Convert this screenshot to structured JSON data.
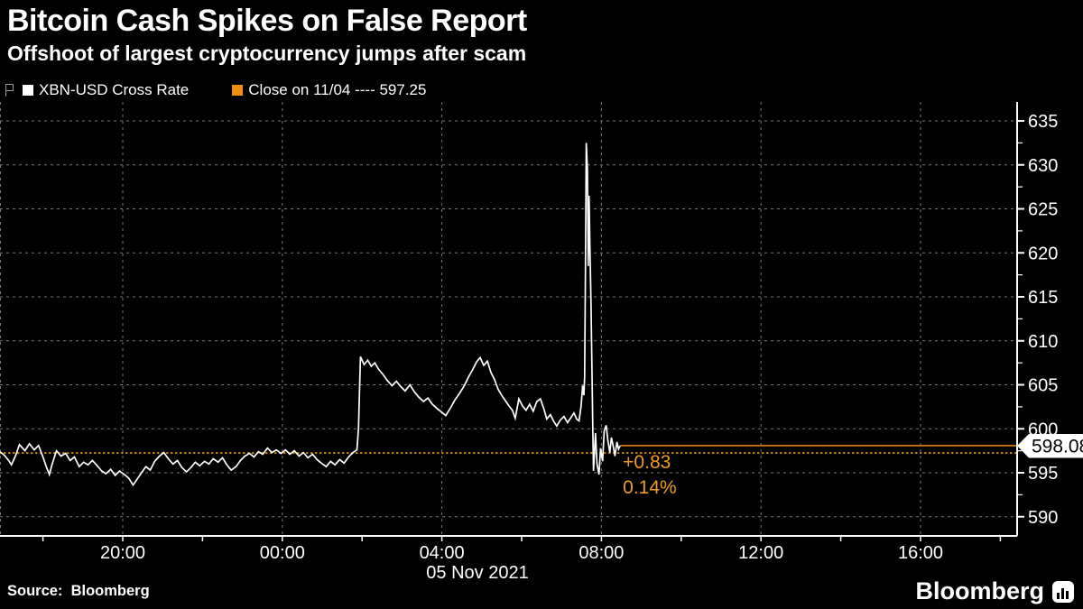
{
  "header": {
    "title": "Bitcoin Cash Spikes on False Report",
    "subtitle": "Offshoot of largest cryptocurrency jumps after scam"
  },
  "legend": {
    "series_label": "XBN-USD Cross Rate",
    "close_label": "Close on 11/04 ---- 597.25"
  },
  "footer": {
    "source": "Source:  Bloomberg",
    "brand": "Bloomberg"
  },
  "colors": {
    "background": "#000000",
    "text": "#ffffff",
    "grid": "#787878",
    "axis": "#ffffff",
    "series": "#ffffff",
    "legend_orange": "#EF8E0F",
    "close_dotted": "#C8820A",
    "last_price_line": "#E08214",
    "annotation": "#F09C1E",
    "price_tag_bg": "#ffffff",
    "price_tag_text": "#000000"
  },
  "chart_data": {
    "type": "line",
    "title": "XBN-USD Cross Rate",
    "xlabel": "",
    "ylabel": "",
    "x_axis": {
      "unit": "hours since 2021-11-04 00:00",
      "range_hours": [
        16.92,
        42.42
      ],
      "label_hours": [
        20,
        24,
        28,
        32,
        36,
        40
      ],
      "tick_labels": [
        "20:00",
        "00:00",
        "04:00",
        "08:00",
        "12:00",
        "16:00"
      ],
      "minor_tick_hours": [
        18,
        20,
        22,
        24,
        26,
        28,
        30,
        32,
        34,
        36,
        38,
        40,
        42
      ],
      "date_label": "05 Nov 2021"
    },
    "y_axis": {
      "side": "right",
      "range": [
        587.6,
        636.8
      ],
      "ticks": [
        590,
        595,
        600,
        605,
        610,
        615,
        620,
        625,
        630,
        635
      ],
      "minor_ticks": [
        592.5,
        597.5,
        602.5,
        607.5,
        612.5,
        617.5,
        622.5,
        627.5,
        632.5
      ]
    },
    "grid": "dashed horizontal and vertical",
    "legend_position": "top-left above plot",
    "close_line": {
      "value": 597.25,
      "style": "dotted-orange",
      "label": "Close on 11/04"
    },
    "last_price": {
      "value": 598.08,
      "label": "598.08",
      "change": "+0.83",
      "change_pct": "0.14%"
    },
    "series": [
      {
        "name": "XBN-USD Cross Rate",
        "color": "#ffffff",
        "points": [
          [
            16.92,
            597.4
          ],
          [
            17.03,
            597.0
          ],
          [
            17.14,
            596.4
          ],
          [
            17.21,
            595.9
          ],
          [
            17.32,
            597.0
          ],
          [
            17.41,
            598.2
          ],
          [
            17.55,
            597.5
          ],
          [
            17.66,
            598.3
          ],
          [
            17.78,
            597.6
          ],
          [
            17.89,
            598.1
          ],
          [
            18.0,
            596.8
          ],
          [
            18.09,
            595.6
          ],
          [
            18.16,
            594.8
          ],
          [
            18.23,
            596.0
          ],
          [
            18.34,
            597.5
          ],
          [
            18.45,
            596.9
          ],
          [
            18.57,
            597.2
          ],
          [
            18.68,
            596.4
          ],
          [
            18.79,
            596.8
          ],
          [
            18.91,
            595.7
          ],
          [
            19.02,
            596.2
          ],
          [
            19.13,
            595.9
          ],
          [
            19.24,
            596.4
          ],
          [
            19.36,
            595.8
          ],
          [
            19.47,
            595.2
          ],
          [
            19.58,
            594.9
          ],
          [
            19.7,
            595.4
          ],
          [
            19.81,
            594.7
          ],
          [
            19.92,
            595.2
          ],
          [
            20.04,
            594.8
          ],
          [
            20.15,
            594.4
          ],
          [
            20.26,
            593.6
          ],
          [
            20.35,
            594.2
          ],
          [
            20.47,
            595.0
          ],
          [
            20.58,
            595.7
          ],
          [
            20.69,
            595.3
          ],
          [
            20.8,
            596.3
          ],
          [
            20.92,
            596.9
          ],
          [
            21.03,
            597.3
          ],
          [
            21.14,
            596.6
          ],
          [
            21.26,
            596.0
          ],
          [
            21.37,
            596.4
          ],
          [
            21.48,
            595.6
          ],
          [
            21.6,
            595.1
          ],
          [
            21.71,
            595.6
          ],
          [
            21.82,
            596.2
          ],
          [
            21.93,
            595.8
          ],
          [
            22.05,
            596.3
          ],
          [
            22.16,
            596.0
          ],
          [
            22.27,
            596.6
          ],
          [
            22.39,
            596.2
          ],
          [
            22.5,
            596.7
          ],
          [
            22.61,
            595.9
          ],
          [
            22.72,
            595.3
          ],
          [
            22.84,
            595.7
          ],
          [
            22.95,
            596.4
          ],
          [
            23.06,
            596.9
          ],
          [
            23.18,
            597.2
          ],
          [
            23.29,
            596.8
          ],
          [
            23.4,
            597.4
          ],
          [
            23.51,
            597.1
          ],
          [
            23.63,
            597.8
          ],
          [
            23.74,
            597.3
          ],
          [
            23.85,
            597.6
          ],
          [
            23.97,
            597.2
          ],
          [
            24.08,
            597.6
          ],
          [
            24.19,
            597.1
          ],
          [
            24.3,
            597.5
          ],
          [
            24.42,
            596.9
          ],
          [
            24.53,
            597.3
          ],
          [
            24.64,
            596.7
          ],
          [
            24.76,
            597.1
          ],
          [
            24.87,
            596.5
          ],
          [
            24.98,
            596.1
          ],
          [
            25.1,
            595.7
          ],
          [
            25.21,
            596.3
          ],
          [
            25.32,
            595.9
          ],
          [
            25.44,
            596.5
          ],
          [
            25.55,
            596.1
          ],
          [
            25.66,
            596.8
          ],
          [
            25.77,
            597.3
          ],
          [
            25.87,
            597.6
          ],
          [
            25.91,
            600.0
          ],
          [
            25.96,
            608.2
          ],
          [
            26.05,
            607.3
          ],
          [
            26.14,
            607.8
          ],
          [
            26.23,
            607.1
          ],
          [
            26.32,
            607.5
          ],
          [
            26.41,
            606.8
          ],
          [
            26.52,
            606.2
          ],
          [
            26.63,
            605.5
          ],
          [
            26.75,
            604.9
          ],
          [
            26.86,
            605.4
          ],
          [
            26.97,
            604.8
          ],
          [
            27.08,
            604.3
          ],
          [
            27.2,
            605.0
          ],
          [
            27.31,
            604.2
          ],
          [
            27.42,
            603.6
          ],
          [
            27.54,
            603.1
          ],
          [
            27.65,
            603.5
          ],
          [
            27.76,
            602.8
          ],
          [
            27.88,
            602.3
          ],
          [
            27.99,
            601.9
          ],
          [
            28.1,
            601.5
          ],
          [
            28.22,
            602.4
          ],
          [
            28.33,
            603.3
          ],
          [
            28.44,
            604.0
          ],
          [
            28.55,
            604.8
          ],
          [
            28.67,
            605.9
          ],
          [
            28.78,
            606.8
          ],
          [
            28.87,
            607.6
          ],
          [
            28.96,
            608.1
          ],
          [
            29.05,
            607.2
          ],
          [
            29.14,
            607.7
          ],
          [
            29.23,
            606.4
          ],
          [
            29.32,
            605.6
          ],
          [
            29.41,
            604.5
          ],
          [
            29.5,
            603.8
          ],
          [
            29.59,
            603.2
          ],
          [
            29.68,
            602.6
          ],
          [
            29.77,
            602.1
          ],
          [
            29.84,
            601.2
          ],
          [
            29.93,
            603.4
          ],
          [
            30.02,
            602.6
          ],
          [
            30.11,
            602.1
          ],
          [
            30.2,
            602.8
          ],
          [
            30.29,
            602.0
          ],
          [
            30.38,
            603.1
          ],
          [
            30.47,
            603.4
          ],
          [
            30.56,
            602.2
          ],
          [
            30.63,
            601.1
          ],
          [
            30.72,
            601.6
          ],
          [
            30.81,
            600.8
          ],
          [
            30.88,
            600.3
          ],
          [
            30.97,
            601.0
          ],
          [
            31.06,
            601.4
          ],
          [
            31.15,
            600.7
          ],
          [
            31.24,
            601.3
          ],
          [
            31.31,
            601.8
          ],
          [
            31.38,
            601.1
          ],
          [
            31.44,
            600.9
          ],
          [
            31.49,
            602.6
          ],
          [
            31.53,
            604.9
          ],
          [
            31.56,
            603.8
          ],
          [
            31.58,
            606.0
          ],
          [
            31.6,
            618.0
          ],
          [
            31.62,
            632.5
          ],
          [
            31.65,
            629.5
          ],
          [
            31.67,
            618.5
          ],
          [
            31.69,
            626.5
          ],
          [
            31.71,
            621.0
          ],
          [
            31.74,
            614.0
          ],
          [
            31.76,
            607.5
          ],
          [
            31.78,
            601.0
          ],
          [
            31.8,
            595.2
          ],
          [
            31.85,
            599.5
          ],
          [
            31.89,
            596.0
          ],
          [
            31.94,
            594.8
          ],
          [
            31.98,
            597.8
          ],
          [
            32.03,
            596.3
          ],
          [
            32.07,
            599.8
          ],
          [
            32.12,
            600.4
          ],
          [
            32.16,
            598.7
          ],
          [
            32.21,
            597.3
          ],
          [
            32.25,
            599.0
          ],
          [
            32.3,
            597.9
          ],
          [
            32.34,
            596.9
          ],
          [
            32.39,
            598.5
          ],
          [
            32.43,
            597.7
          ],
          [
            32.47,
            598.08
          ]
        ]
      }
    ]
  }
}
